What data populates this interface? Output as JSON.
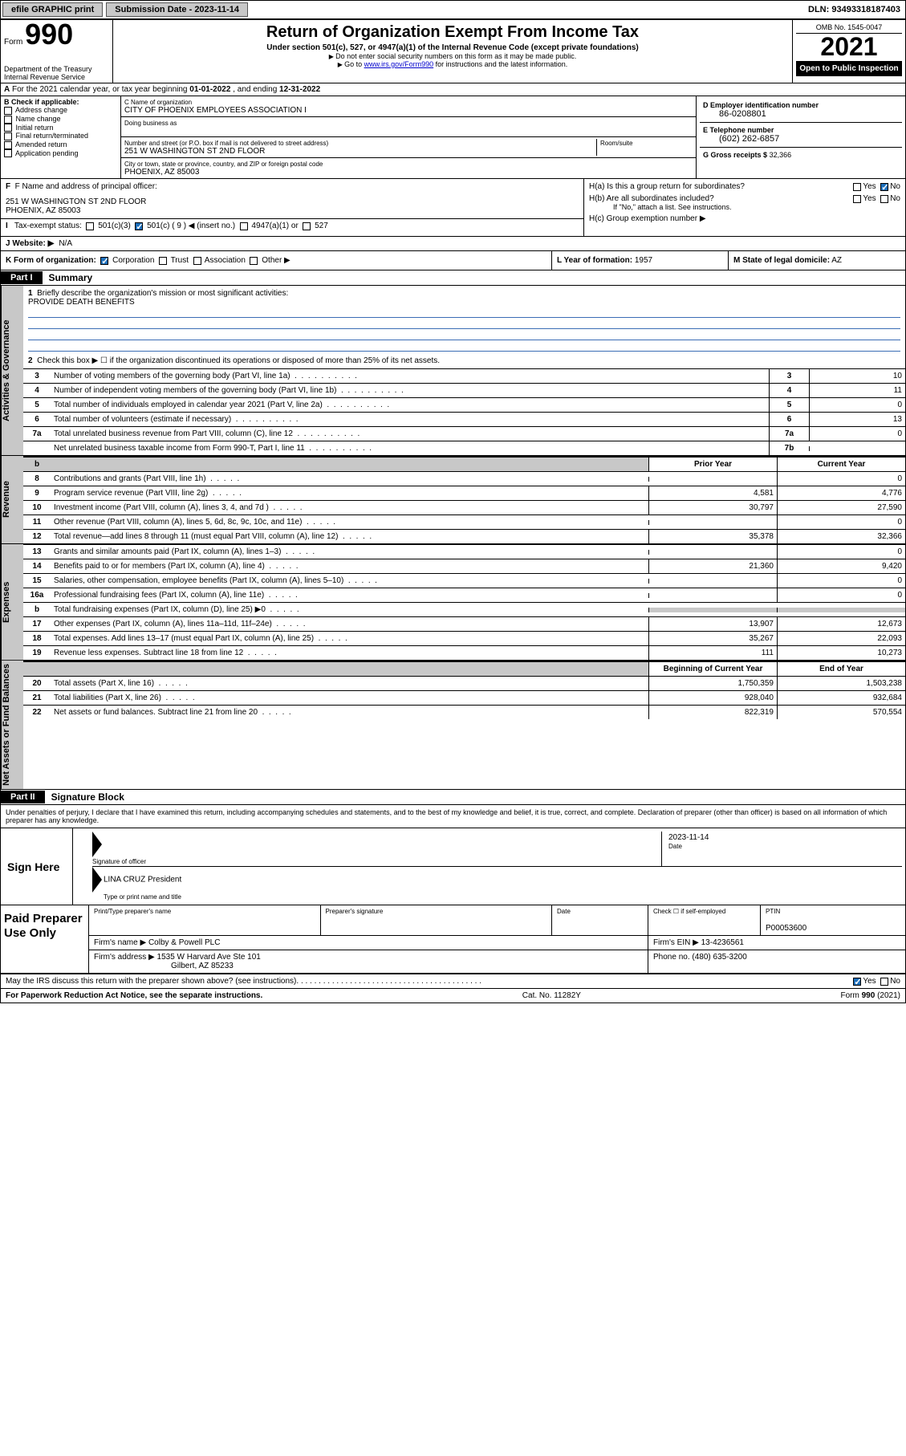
{
  "topbar": {
    "efile": "efile GRAPHIC print",
    "submission_label": "Submission Date - 2023-11-14",
    "dln": "DLN: 93493318187403"
  },
  "header": {
    "form_word": "Form",
    "form_num": "990",
    "dept": "Department of the Treasury",
    "irs": "Internal Revenue Service",
    "title": "Return of Organization Exempt From Income Tax",
    "subtitle": "Under section 501(c), 527, or 4947(a)(1) of the Internal Revenue Code (except private foundations)",
    "note1": "Do not enter social security numbers on this form as it may be made public.",
    "note2_pre": "Go to ",
    "note2_link": "www.irs.gov/Form990",
    "note2_post": " for instructions and the latest information.",
    "omb": "OMB No. 1545-0047",
    "year": "2021",
    "open": "Open to Public Inspection"
  },
  "rowA": {
    "prefix": "A",
    "text_pre": "For the 2021 calendar year, or tax year beginning ",
    "beg": "01-01-2022",
    "mid": " , and ending ",
    "end": "12-31-2022"
  },
  "entity": {
    "B_label": "B Check if applicable:",
    "B_opts": [
      "Address change",
      "Name change",
      "Initial return",
      "Final return/terminated",
      "Amended return",
      "Application pending"
    ],
    "C_name_lab": "C Name of organization",
    "C_name": "CITY OF PHOENIX EMPLOYEES ASSOCIATION I",
    "C_dba_lab": "Doing business as",
    "C_street_lab": "Number and street (or P.O. box if mail is not delivered to street address)",
    "C_room_lab": "Room/suite",
    "C_street": "251 W WASHINGTON ST 2ND FLOOR",
    "C_city_lab": "City or town, state or province, country, and ZIP or foreign postal code",
    "C_city": "PHOENIX, AZ  85003",
    "D_lab": "D Employer identification number",
    "D_val": "86-0208801",
    "E_lab": "E Telephone number",
    "E_val": "(602) 262-6857",
    "G_lab": "G Gross receipts $",
    "G_val": "32,366"
  },
  "rowsFI": {
    "F_lab": "F  Name and address of principal officer:",
    "F_addr1": "251 W WASHINGTON ST 2ND FLOOR",
    "F_addr2": "PHOENIX, AZ  85003",
    "I_lab": "I   Tax-exempt status:",
    "I_501c3": "501(c)(3)",
    "I_501c": "501(c) ( 9 ) ◀ (insert no.)",
    "I_4947": "4947(a)(1) or",
    "I_527": "527",
    "Ha_lab": "H(a)  Is this a group return for subordinates?",
    "Hb_lab": "H(b)  Are all subordinates included?",
    "Hb_note": "If \"No,\" attach a list. See instructions.",
    "Hc_lab": "H(c)  Group exemption number ▶",
    "yes": "Yes",
    "no": "No"
  },
  "rowJ": {
    "lab": "J   Website: ▶",
    "val": "N/A"
  },
  "rowK": {
    "k_lab": "K Form of organization:",
    "k_opts": [
      "Corporation",
      "Trust",
      "Association",
      "Other ▶"
    ],
    "l_lab": "L Year of formation:",
    "l_val": "1957",
    "m_lab": "M State of legal domicile:",
    "m_val": "AZ"
  },
  "partI": {
    "tag": "Part I",
    "title": "Summary"
  },
  "summary_intro": {
    "l1_num": "1",
    "l1": "Briefly describe the organization's mission or most significant activities:",
    "l1_val": "PROVIDE DEATH BENEFITS",
    "l2_num": "2",
    "l2": "Check this box ▶ ☐  if the organization discontinued its operations or disposed of more than 25% of its net assets."
  },
  "activities_tab": "Activities & Governance",
  "revenue_tab": "Revenue",
  "expenses_tab": "Expenses",
  "netassets_tab": "Net Assets or Fund Balances",
  "sum_lines": [
    {
      "n": "3",
      "d": "Number of voting members of the governing body (Part VI, line 1a)",
      "box": "3",
      "v": "10"
    },
    {
      "n": "4",
      "d": "Number of independent voting members of the governing body (Part VI, line 1b)",
      "box": "4",
      "v": "11"
    },
    {
      "n": "5",
      "d": "Total number of individuals employed in calendar year 2021 (Part V, line 2a)",
      "box": "5",
      "v": "0"
    },
    {
      "n": "6",
      "d": "Total number of volunteers (estimate if necessary)",
      "box": "6",
      "v": "13"
    },
    {
      "n": "7a",
      "d": "Total unrelated business revenue from Part VIII, column (C), line 12",
      "box": "7a",
      "v": "0"
    },
    {
      "n": "",
      "d": "Net unrelated business taxable income from Form 990-T, Part I, line 11",
      "box": "7b",
      "v": ""
    }
  ],
  "money_hdr": {
    "b": "b",
    "prior": "Prior Year",
    "current": "Current Year"
  },
  "revenue_lines": [
    {
      "n": "8",
      "d": "Contributions and grants (Part VIII, line 1h)",
      "pv": "",
      "cv": "0"
    },
    {
      "n": "9",
      "d": "Program service revenue (Part VIII, line 2g)",
      "pv": "4,581",
      "cv": "4,776"
    },
    {
      "n": "10",
      "d": "Investment income (Part VIII, column (A), lines 3, 4, and 7d )",
      "pv": "30,797",
      "cv": "27,590"
    },
    {
      "n": "11",
      "d": "Other revenue (Part VIII, column (A), lines 5, 6d, 8c, 9c, 10c, and 11e)",
      "pv": "",
      "cv": "0"
    },
    {
      "n": "12",
      "d": "Total revenue—add lines 8 through 11 (must equal Part VIII, column (A), line 12)",
      "pv": "35,378",
      "cv": "32,366"
    }
  ],
  "expense_lines": [
    {
      "n": "13",
      "d": "Grants and similar amounts paid (Part IX, column (A), lines 1–3)",
      "pv": "",
      "cv": "0"
    },
    {
      "n": "14",
      "d": "Benefits paid to or for members (Part IX, column (A), line 4)",
      "pv": "21,360",
      "cv": "9,420"
    },
    {
      "n": "15",
      "d": "Salaries, other compensation, employee benefits (Part IX, column (A), lines 5–10)",
      "pv": "",
      "cv": "0"
    },
    {
      "n": "16a",
      "d": "Professional fundraising fees (Part IX, column (A), line 11e)",
      "pv": "",
      "cv": "0"
    },
    {
      "n": "b",
      "d": "Total fundraising expenses (Part IX, column (D), line 25) ▶0",
      "pv": "shade",
      "cv": "shade"
    },
    {
      "n": "17",
      "d": "Other expenses (Part IX, column (A), lines 11a–11d, 11f–24e)",
      "pv": "13,907",
      "cv": "12,673"
    },
    {
      "n": "18",
      "d": "Total expenses. Add lines 13–17 (must equal Part IX, column (A), line 25)",
      "pv": "35,267",
      "cv": "22,093"
    },
    {
      "n": "19",
      "d": "Revenue less expenses. Subtract line 18 from line 12",
      "pv": "111",
      "cv": "10,273"
    }
  ],
  "netassets_hdr": {
    "beg": "Beginning of Current Year",
    "end": "End of Year"
  },
  "netassets_lines": [
    {
      "n": "20",
      "d": "Total assets (Part X, line 16)",
      "pv": "1,750,359",
      "cv": "1,503,238"
    },
    {
      "n": "21",
      "d": "Total liabilities (Part X, line 26)",
      "pv": "928,040",
      "cv": "932,684"
    },
    {
      "n": "22",
      "d": "Net assets or fund balances. Subtract line 21 from line 20",
      "pv": "822,319",
      "cv": "570,554"
    }
  ],
  "partII": {
    "tag": "Part II",
    "title": "Signature Block"
  },
  "penalties": "Under penalties of perjury, I declare that I have examined this return, including accompanying schedules and statements, and to the best of my knowledge and belief, it is true, correct, and complete. Declaration of preparer (other than officer) is based on all information of which preparer has any knowledge.",
  "sign": {
    "lab": "Sign Here",
    "sig_of_officer": "Signature of officer",
    "date_lab": "Date",
    "date_val": "2023-11-14",
    "name": "LINA CRUZ  President",
    "type_lab": "Type or print name and title"
  },
  "paid": {
    "lab": "Paid Preparer Use Only",
    "c1": "Print/Type preparer's name",
    "c2": "Preparer's signature",
    "c3": "Date",
    "c4_lab": "Check ☐ if self-employed",
    "c5_lab": "PTIN",
    "c5_val": "P00053600",
    "firm_name_lab": "Firm's name    ▶",
    "firm_name": "Colby & Powell PLC",
    "firm_ein_lab": "Firm's EIN ▶",
    "firm_ein": "13-4236561",
    "firm_addr_lab": "Firm's address ▶",
    "firm_addr1": "1535 W Harvard Ave Ste 101",
    "firm_addr2": "Gilbert, AZ  85233",
    "phone_lab": "Phone no.",
    "phone": "(480) 635-3200"
  },
  "may_irs": {
    "text": "May the IRS discuss this return with the preparer shown above? (see instructions)",
    "yes": "Yes",
    "no": "No"
  },
  "footer": {
    "left": "For Paperwork Reduction Act Notice, see the separate instructions.",
    "mid": "Cat. No. 11282Y",
    "right": "Form 990 (2021)"
  }
}
